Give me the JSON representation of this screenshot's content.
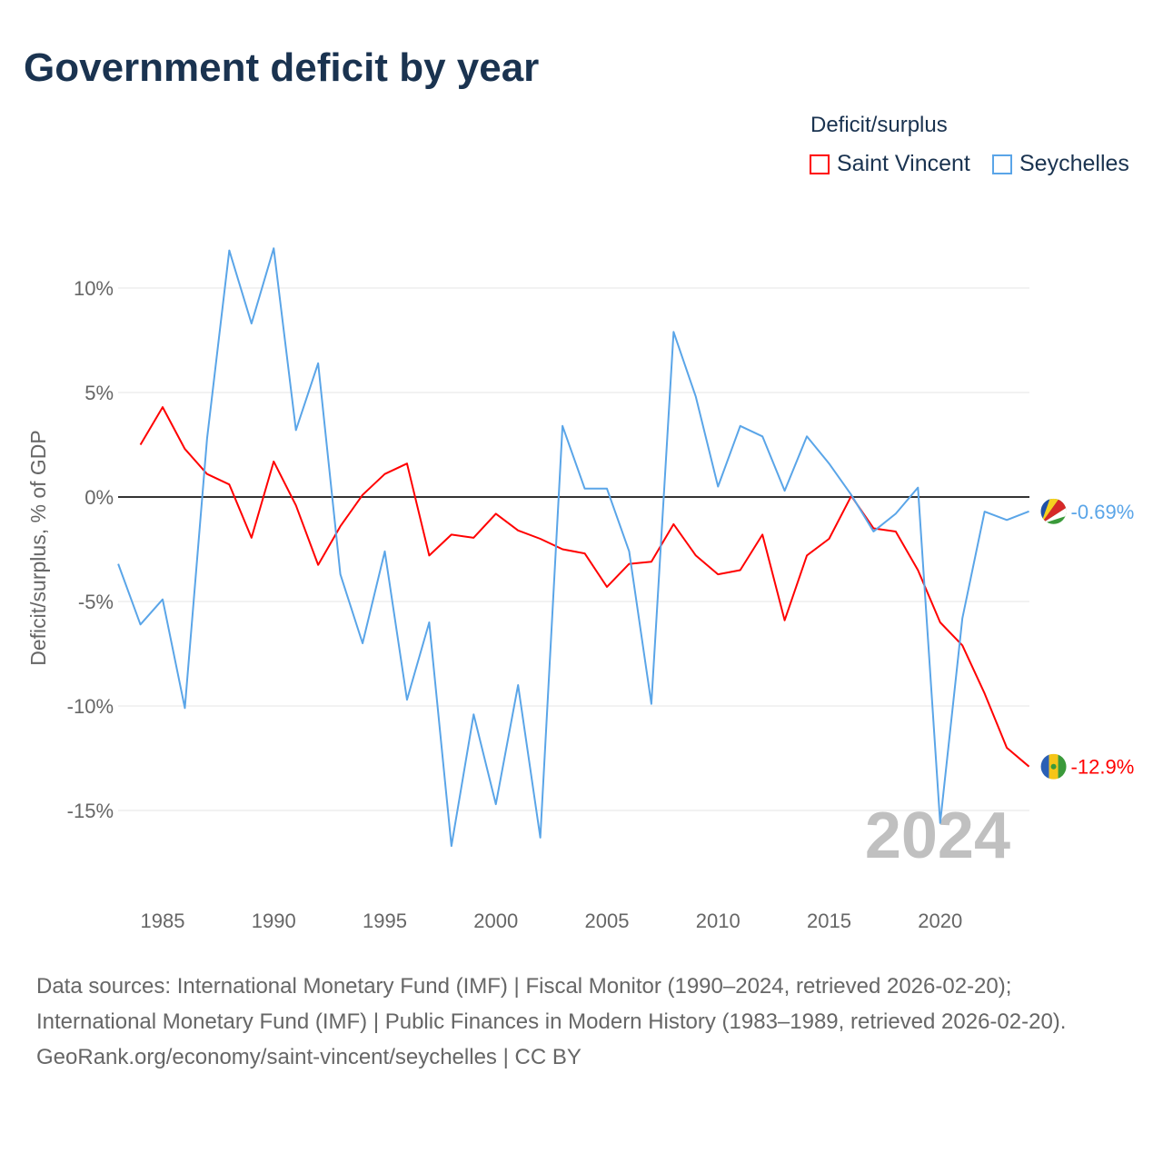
{
  "title": "Government deficit by year",
  "legend": {
    "title": "Deficit/surplus",
    "items": [
      "Saint Vincent",
      "Seychelles"
    ]
  },
  "year_label": "2024",
  "sources": {
    "line1": "Data sources: International Monetary Fund (IMF) | Fiscal Monitor (1990–2024, retrieved 2026-02-20); International Monetary Fund (IMF) | Public Finances in Modern History (1983–1989, retrieved 2026-02-20).",
    "line2": "GeoRank.org/economy/saint-vincent/seychelles | CC BY"
  },
  "chart_data": {
    "type": "line",
    "title": "Government deficit by year",
    "xlabel": "",
    "ylabel": "Deficit/surplus, % of GDP",
    "xlim": [
      1983,
      2024
    ],
    "ylim": [
      -18,
      14
    ],
    "x_ticks": [
      1985,
      1990,
      1995,
      2000,
      2005,
      2010,
      2015,
      2020
    ],
    "y_ticks": [
      10,
      5,
      0,
      -5,
      -10,
      -15
    ],
    "y_tick_labels": [
      "10%",
      "5%",
      "0%",
      "-5%",
      "-10%",
      "-15%"
    ],
    "grid": true,
    "legend_position": "top-right",
    "series": [
      {
        "name": "Saint Vincent",
        "color": "#ff0000",
        "end_label": "-12.9%",
        "start_year": 1984,
        "values": [
          2.5,
          4.3,
          2.3,
          1.1,
          0.6,
          -1.95,
          1.7,
          -0.4,
          -3.25,
          -1.4,
          0.1,
          1.1,
          1.6,
          -2.8,
          -1.8,
          -1.95,
          -0.8,
          -1.6,
          -2.0,
          -2.5,
          -2.7,
          -4.3,
          -3.2,
          -3.1,
          -1.3,
          -2.8,
          -3.7,
          -3.5,
          -1.8,
          -5.9,
          -2.8,
          -2.0,
          0.05,
          -1.5,
          -1.65,
          -3.5,
          -6.0,
          -7.1,
          -9.4,
          -12.0,
          -12.9
        ]
      },
      {
        "name": "Seychelles",
        "color": "#5aa5e8",
        "end_label": "-0.69%",
        "start_year": 1983,
        "values": [
          -3.2,
          -6.1,
          -4.9,
          -10.1,
          2.8,
          11.8,
          8.3,
          11.9,
          3.2,
          6.4,
          -3.7,
          -7.0,
          -2.6,
          -9.7,
          -6.0,
          -16.7,
          -10.4,
          -14.7,
          -9.0,
          -16.3,
          3.4,
          0.4,
          0.4,
          -2.6,
          -9.9,
          7.9,
          4.8,
          0.5,
          3.4,
          2.9,
          0.3,
          2.9,
          1.6,
          0.1,
          -1.65,
          -0.8,
          0.45,
          -15.6,
          -5.8,
          -0.7,
          -1.1,
          -0.69
        ]
      }
    ]
  }
}
